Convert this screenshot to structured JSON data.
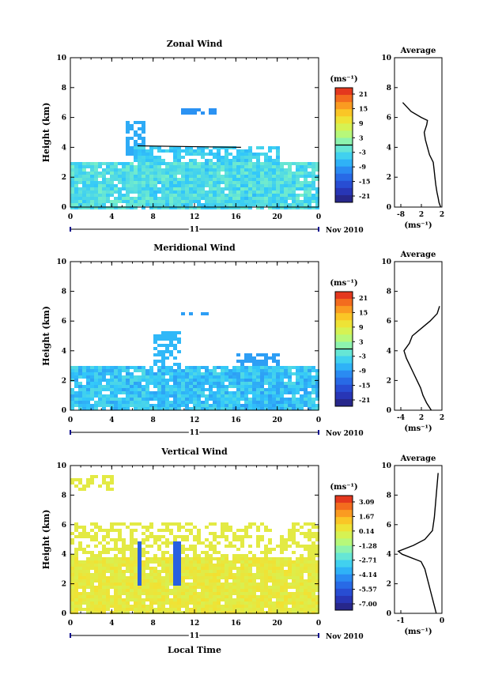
{
  "chart_data": [
    {
      "type": "heatmap",
      "title": "Zonal Wind",
      "xlabel": "",
      "ylabel": "Height (km)",
      "xlim": [
        0,
        24
      ],
      "ylim": [
        0,
        10
      ],
      "x_ticks": [
        "0",
        "4",
        "8",
        "12",
        "16",
        "20",
        "0"
      ],
      "y_ticks": [
        "0",
        "2",
        "4",
        "6",
        "8",
        "10"
      ],
      "day_label": "11",
      "date_label": "Nov 2010",
      "colorbar": {
        "unit": "(ms⁻¹)",
        "ticks": [
          "21",
          "15",
          "9",
          "3",
          "-3",
          "-9",
          "-15",
          "-21"
        ],
        "min": -24,
        "max": 24
      },
      "profile": {
        "title": "Average",
        "xlabel": "(ms⁻¹)",
        "x_ticks": [
          "-8",
          "2",
          "2"
        ],
        "xlim": [
          -9,
          2.5
        ],
        "points": [
          [
            2.2,
            0.0
          ],
          [
            1.8,
            0.3
          ],
          [
            1.6,
            0.6
          ],
          [
            1.3,
            1.0
          ],
          [
            1.0,
            1.5
          ],
          [
            0.8,
            2.0
          ],
          [
            0.6,
            2.5
          ],
          [
            0.4,
            3.0
          ],
          [
            -0.5,
            3.5
          ],
          [
            -1.0,
            4.0
          ],
          [
            -1.5,
            4.5
          ],
          [
            -1.8,
            5.0
          ],
          [
            -1.2,
            5.5
          ],
          [
            -1.0,
            5.8
          ],
          [
            -2.5,
            6.0
          ],
          [
            -5.0,
            6.4
          ],
          [
            -7.0,
            7.0
          ]
        ]
      }
    },
    {
      "type": "heatmap",
      "title": "Meridional Wind",
      "xlabel": "",
      "ylabel": "Height (km)",
      "xlim": [
        0,
        24
      ],
      "ylim": [
        0,
        10
      ],
      "x_ticks": [
        "0",
        "4",
        "8",
        "12",
        "16",
        "20",
        "0"
      ],
      "y_ticks": [
        "0",
        "2",
        "4",
        "6",
        "8",
        "10"
      ],
      "day_label": "11",
      "date_label": "Nov 2010",
      "colorbar": {
        "unit": "(ms⁻¹)",
        "ticks": [
          "21",
          "15",
          "9",
          "3",
          "-3",
          "-9",
          "-15",
          "-21"
        ],
        "min": -24,
        "max": 24
      },
      "profile": {
        "title": "Average",
        "xlabel": "(ms⁻¹)",
        "x_ticks": [
          "-4",
          "2",
          "2"
        ],
        "xlim": [
          -5,
          3
        ],
        "points": [
          [
            1.2,
            0.0
          ],
          [
            0.4,
            0.5
          ],
          [
            -0.2,
            1.0
          ],
          [
            -0.6,
            1.5
          ],
          [
            -1.2,
            2.0
          ],
          [
            -1.8,
            2.5
          ],
          [
            -2.4,
            3.0
          ],
          [
            -3.0,
            3.5
          ],
          [
            -3.4,
            4.0
          ],
          [
            -2.5,
            4.5
          ],
          [
            -2.0,
            5.0
          ],
          [
            -0.5,
            5.5
          ],
          [
            1.0,
            6.0
          ],
          [
            2.2,
            6.5
          ],
          [
            2.6,
            7.0
          ]
        ]
      }
    },
    {
      "type": "heatmap",
      "title": "Vertical Wind",
      "xlabel": "Local Time",
      "ylabel": "Height (km)",
      "xlim": [
        0,
        24
      ],
      "ylim": [
        0,
        10
      ],
      "x_ticks": [
        "0",
        "4",
        "8",
        "12",
        "16",
        "20",
        "0"
      ],
      "y_ticks": [
        "0",
        "2",
        "4",
        "6",
        "8",
        "10"
      ],
      "day_label": "11",
      "date_label": "Nov 2010",
      "colorbar": {
        "unit": "(ms⁻¹)",
        "ticks": [
          "3.09",
          "1.67",
          "0.14",
          "-1.28",
          "-2.71",
          "-4.14",
          "-5.57",
          "-7.00"
        ],
        "min": -7.8,
        "max": 3.8
      },
      "profile": {
        "title": "Average",
        "xlabel": "(ms⁻¹)",
        "x_ticks": [
          "-1",
          "0"
        ],
        "xlim": [
          -1.1,
          0.15
        ],
        "points": [
          [
            0.0,
            0.0
          ],
          [
            -0.05,
            0.5
          ],
          [
            -0.1,
            1.0
          ],
          [
            -0.15,
            1.5
          ],
          [
            -0.2,
            2.0
          ],
          [
            -0.25,
            2.5
          ],
          [
            -0.3,
            3.0
          ],
          [
            -0.4,
            3.5
          ],
          [
            -0.9,
            4.0
          ],
          [
            -1.0,
            4.2
          ],
          [
            -0.6,
            4.6
          ],
          [
            -0.3,
            5.0
          ],
          [
            -0.1,
            5.6
          ],
          [
            -0.05,
            6.5
          ],
          [
            0.0,
            8.0
          ],
          [
            0.05,
            9.5
          ]
        ]
      }
    }
  ]
}
